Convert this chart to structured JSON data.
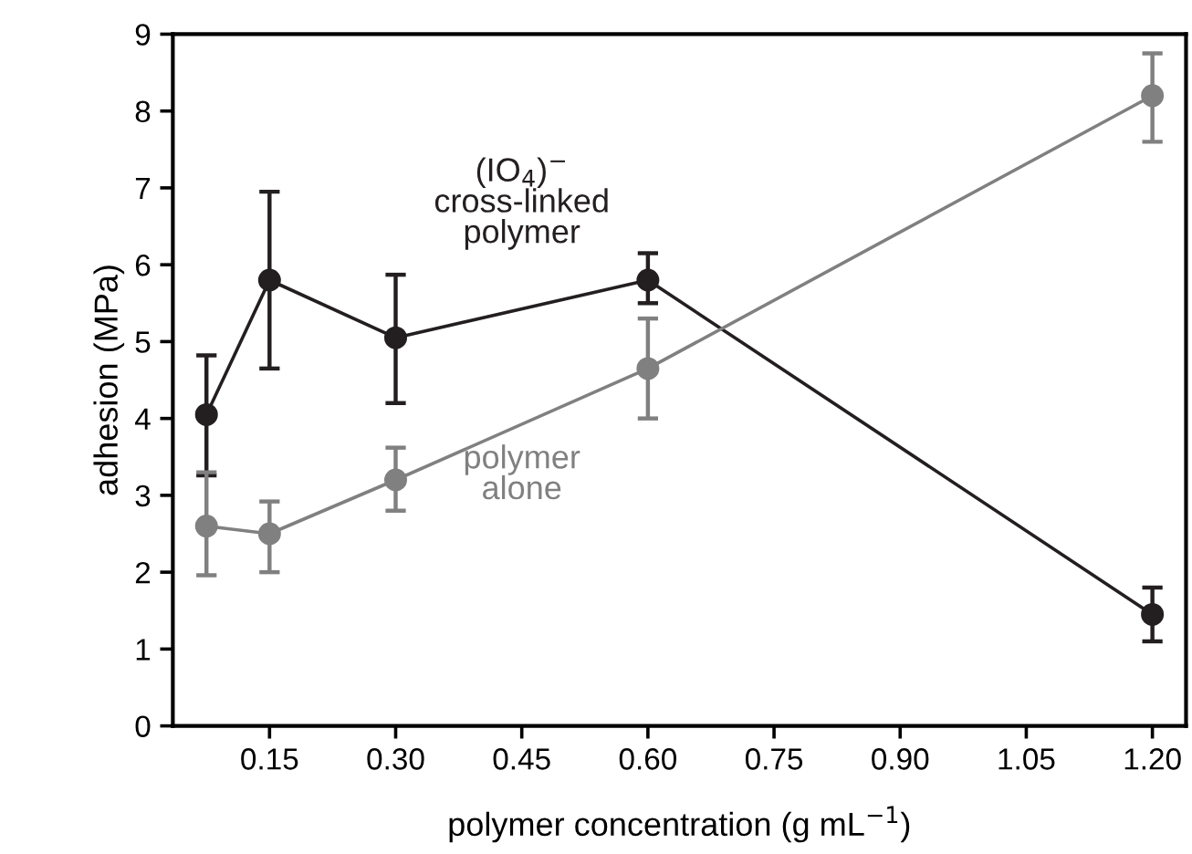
{
  "chart_data": {
    "type": "line",
    "xlabel": "polymer concentration (g mL$^{−1}$)",
    "ylabel": "adhesion (MPa)",
    "xlim": [
      0.035,
      1.24
    ],
    "ylim": [
      0,
      9
    ],
    "xticks": [
      0.15,
      {
        "value": 0.3,
        "label": "0.30"
      },
      0.45,
      {
        "value": 0.6,
        "label": "0.60"
      },
      0.75,
      {
        "value": 0.9,
        "label": "0.90"
      },
      1.05,
      {
        "value": 1.2,
        "label": "1.20"
      }
    ],
    "yticks": [
      0,
      1,
      2,
      3,
      4,
      5,
      6,
      7,
      8,
      9
    ],
    "x": [
      0.075,
      0.15,
      0.3,
      0.6,
      1.2
    ],
    "marker": "circle",
    "line_style": "solid",
    "grid": false,
    "legend": false,
    "series": [
      {
        "name": "(IO$_{4}$)$^{−}$\ncross-linked\npolymer",
        "color": "#231f20",
        "values": [
          4.05,
          5.8,
          5.05,
          5.8,
          1.45
        ],
        "errors": [
          [
            3.26,
            4.82
          ],
          [
            4.65,
            6.95
          ],
          [
            4.2,
            5.87
          ],
          [
            5.5,
            6.15
          ],
          [
            1.1,
            1.8
          ]
        ]
      },
      {
        "name": "polymer\nalone",
        "color": "#808080",
        "values": [
          2.6,
          2.5,
          3.2,
          4.65,
          8.2
        ],
        "errors": [
          [
            1.96,
            3.3
          ],
          [
            2.0,
            2.92
          ],
          [
            2.8,
            3.62
          ],
          [
            4.0,
            5.3
          ],
          [
            7.6,
            8.75
          ]
        ]
      }
    ]
  }
}
